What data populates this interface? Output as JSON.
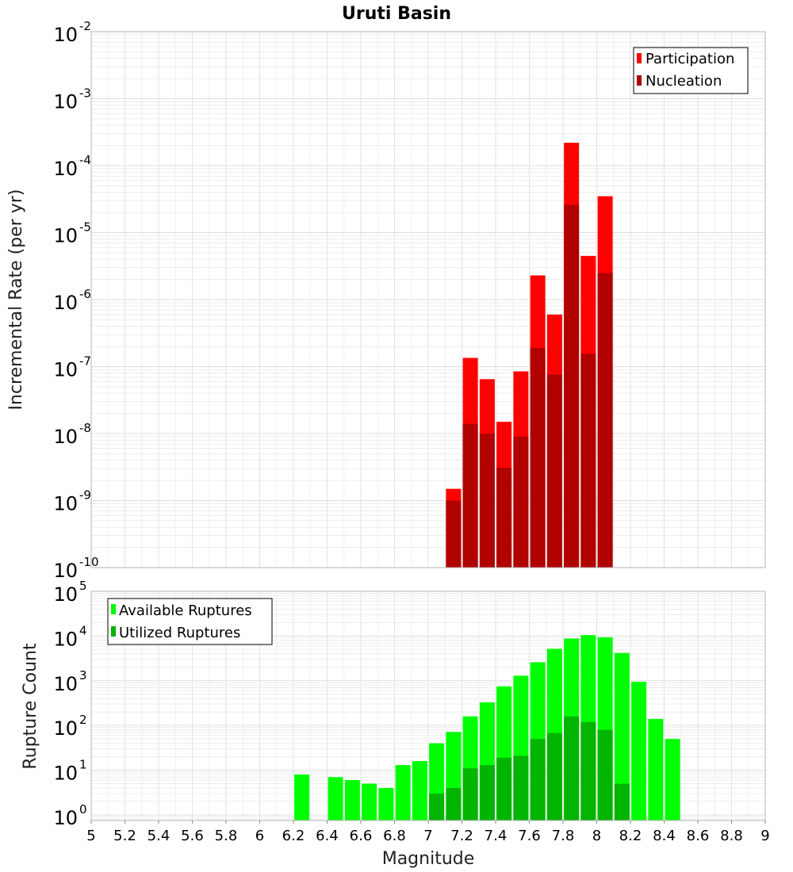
{
  "chart_data": [
    {
      "type": "bar",
      "title": "Uruti Basin",
      "ylabel": "Incremental Rate (per yr)",
      "yscale": "log",
      "ylim": [
        1e-10,
        0.01
      ],
      "xlim": [
        5,
        9
      ],
      "grid": true,
      "legend_position": "top-right",
      "y_ticks": [
        {
          "base": "10",
          "exp": "-10"
        },
        {
          "base": "10",
          "exp": "-9"
        },
        {
          "base": "10",
          "exp": "-8"
        },
        {
          "base": "10",
          "exp": "-7"
        },
        {
          "base": "10",
          "exp": "-6"
        },
        {
          "base": "10",
          "exp": "-5"
        },
        {
          "base": "10",
          "exp": "-4"
        },
        {
          "base": "10",
          "exp": "-3"
        },
        {
          "base": "10",
          "exp": "-2"
        }
      ],
      "x": [
        7.15,
        7.25,
        7.35,
        7.45,
        7.55,
        7.65,
        7.75,
        7.85,
        7.95,
        8.05
      ],
      "series": [
        {
          "name": "Participation",
          "color": "#ff0000",
          "values": [
            1.5e-09,
            1.35e-07,
            6.5e-08,
            1.5e-08,
            8.5e-08,
            2.3e-06,
            6e-07,
            0.00022,
            4.5e-06,
            3.5e-05
          ]
        },
        {
          "name": "Nucleation",
          "color": "#b00000",
          "values": [
            1e-09,
            1.4e-08,
            1e-08,
            3.1e-09,
            9e-09,
            1.9e-07,
            7.6e-08,
            2.6e-05,
            1.55e-07,
            2.5e-06
          ]
        }
      ]
    },
    {
      "type": "bar",
      "ylabel": "Rupture Count",
      "xlabel": "Magnitude",
      "yscale": "log",
      "ylim": [
        0.75,
        100000.0
      ],
      "xlim": [
        5,
        9
      ],
      "grid": true,
      "legend_position": "top-left",
      "x_ticks": [
        "5",
        "5.2",
        "5.4",
        "5.6",
        "5.8",
        "6",
        "6.2",
        "6.4",
        "6.6",
        "6.8",
        "7",
        "7.2",
        "7.4",
        "7.6",
        "7.8",
        "8",
        "8.2",
        "8.4",
        "8.6",
        "8.8",
        "9"
      ],
      "y_ticks": [
        {
          "base": "10",
          "exp": "0"
        },
        {
          "base": "10",
          "exp": "1"
        },
        {
          "base": "10",
          "exp": "2"
        },
        {
          "base": "10",
          "exp": "3"
        },
        {
          "base": "10",
          "exp": "4"
        },
        {
          "base": "10",
          "exp": "5"
        }
      ],
      "series": [
        {
          "name": "Available Ruptures",
          "color": "#00ff00",
          "x": [
            6.25,
            6.45,
            6.55,
            6.65,
            6.75,
            6.85,
            6.95,
            7.05,
            7.15,
            7.25,
            7.35,
            7.45,
            7.55,
            7.65,
            7.75,
            7.85,
            7.95,
            8.05,
            8.15,
            8.25,
            8.35,
            8.45
          ],
          "values": [
            8,
            7,
            6,
            5,
            4,
            13,
            16,
            40,
            72,
            160,
            330,
            750,
            1300,
            2600,
            5200,
            8800,
            10500,
            9400,
            4200,
            950,
            140,
            50
          ]
        },
        {
          "name": "Utilized Ruptures",
          "color": "#00b400",
          "x": [
            7.05,
            7.15,
            7.25,
            7.35,
            7.45,
            7.55,
            7.65,
            7.75,
            7.85,
            7.95,
            8.05,
            8.15
          ],
          "values": [
            3,
            4,
            11,
            13,
            19,
            21,
            50,
            68,
            160,
            120,
            80,
            5
          ]
        }
      ]
    }
  ]
}
